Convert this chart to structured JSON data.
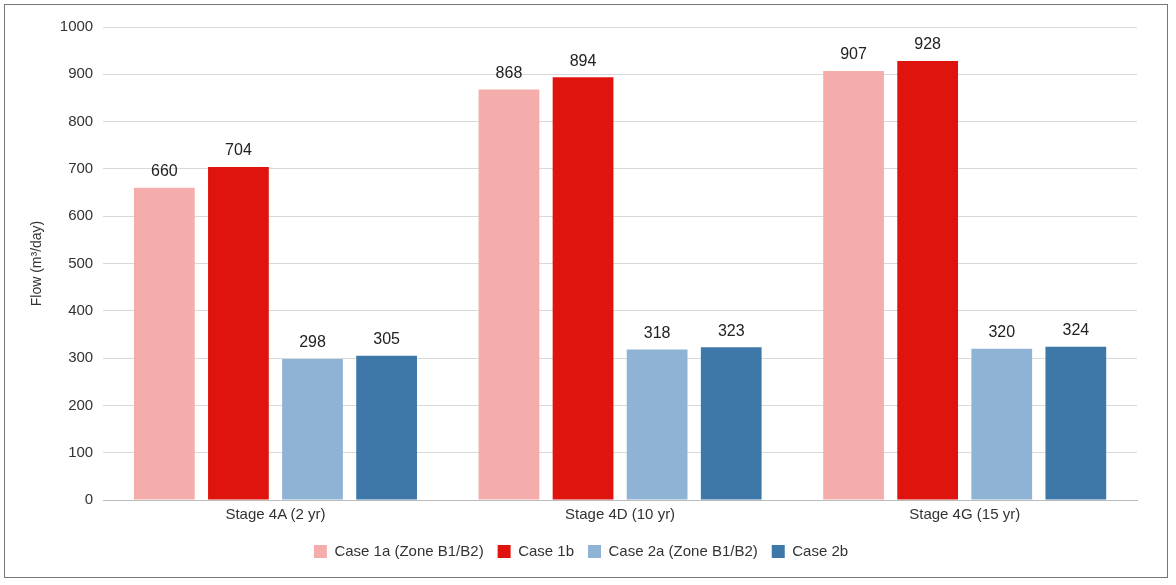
{
  "chart_data": {
    "type": "bar",
    "ylabel": "Flow (m³/day)",
    "categories": [
      "Stage 4A (2 yr)",
      "Stage 4D (10 yr)",
      "Stage 4G (15 yr)"
    ],
    "series": [
      {
        "name": "Case 1a (Zone B1/B2)",
        "color": "#f5adab",
        "values": [
          660,
          868,
          907
        ]
      },
      {
        "name": "Case 1b",
        "color": "#e0140e",
        "values": [
          704,
          894,
          928
        ]
      },
      {
        "name": "Case 2a (Zone B1/B2)",
        "color": "#8fb3d5",
        "values": [
          298,
          318,
          320
        ]
      },
      {
        "name": "Case 2b",
        "color": "#3e78a8",
        "values": [
          305,
          323,
          324
        ]
      }
    ],
    "ylim": [
      0,
      1000
    ],
    "yticks": [
      0,
      100,
      200,
      300,
      400,
      500,
      600,
      700,
      800,
      900,
      1000
    ],
    "grid": "y",
    "legend": "bottom",
    "data_labels": true
  }
}
